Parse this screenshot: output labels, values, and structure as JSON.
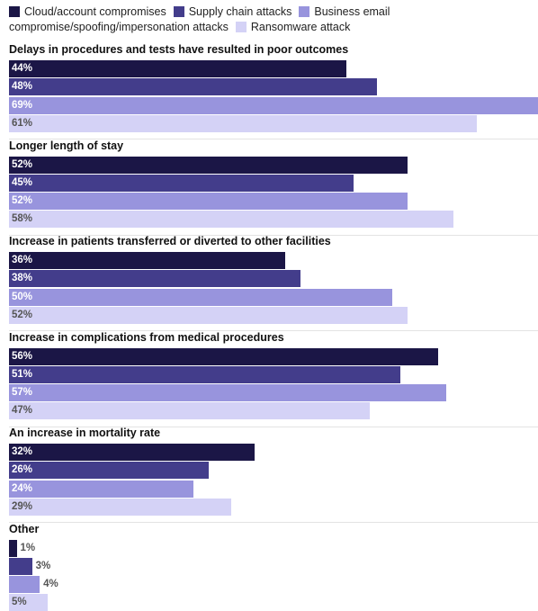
{
  "chart_data": {
    "type": "bar",
    "orientation": "horizontal",
    "xlim": [
      0,
      69
    ],
    "grid": false,
    "legend_placement": "top-left",
    "series": [
      {
        "name": "Cloud/account compromises",
        "color": "#1b1646"
      },
      {
        "name": "Supply chain attacks",
        "color": "#433d8b"
      },
      {
        "name": "Business email compromise/spoofing/impersonation attacks",
        "color": "#9894dd"
      },
      {
        "name": "Ransomware attack",
        "color": "#d4d2f6"
      }
    ],
    "categories": [
      {
        "label": "Delays in procedures and tests have resulted in poor outcomes",
        "values": [
          44,
          48,
          69,
          61
        ],
        "labels": [
          "44%",
          "48%",
          "69%",
          "61%"
        ]
      },
      {
        "label": "Longer length of stay",
        "values": [
          52,
          45,
          52,
          58
        ],
        "labels": [
          "52%",
          "45%",
          "52%",
          "58%"
        ]
      },
      {
        "label": "Increase in patients transferred or diverted to other facilities",
        "values": [
          36,
          38,
          50,
          52
        ],
        "labels": [
          "36%",
          "38%",
          "50%",
          "52%"
        ]
      },
      {
        "label": "Increase in complications from medical procedures",
        "values": [
          56,
          51,
          57,
          47
        ],
        "labels": [
          "56%",
          "51%",
          "57%",
          "47%"
        ]
      },
      {
        "label": "An increase in mortality rate",
        "values": [
          32,
          26,
          24,
          29
        ],
        "labels": [
          "32%",
          "26%",
          "24%",
          "29%"
        ]
      },
      {
        "label": "Other",
        "values": [
          1,
          3,
          4,
          5
        ],
        "labels": [
          "1%",
          "3%",
          "4%",
          "5%"
        ]
      }
    ]
  }
}
